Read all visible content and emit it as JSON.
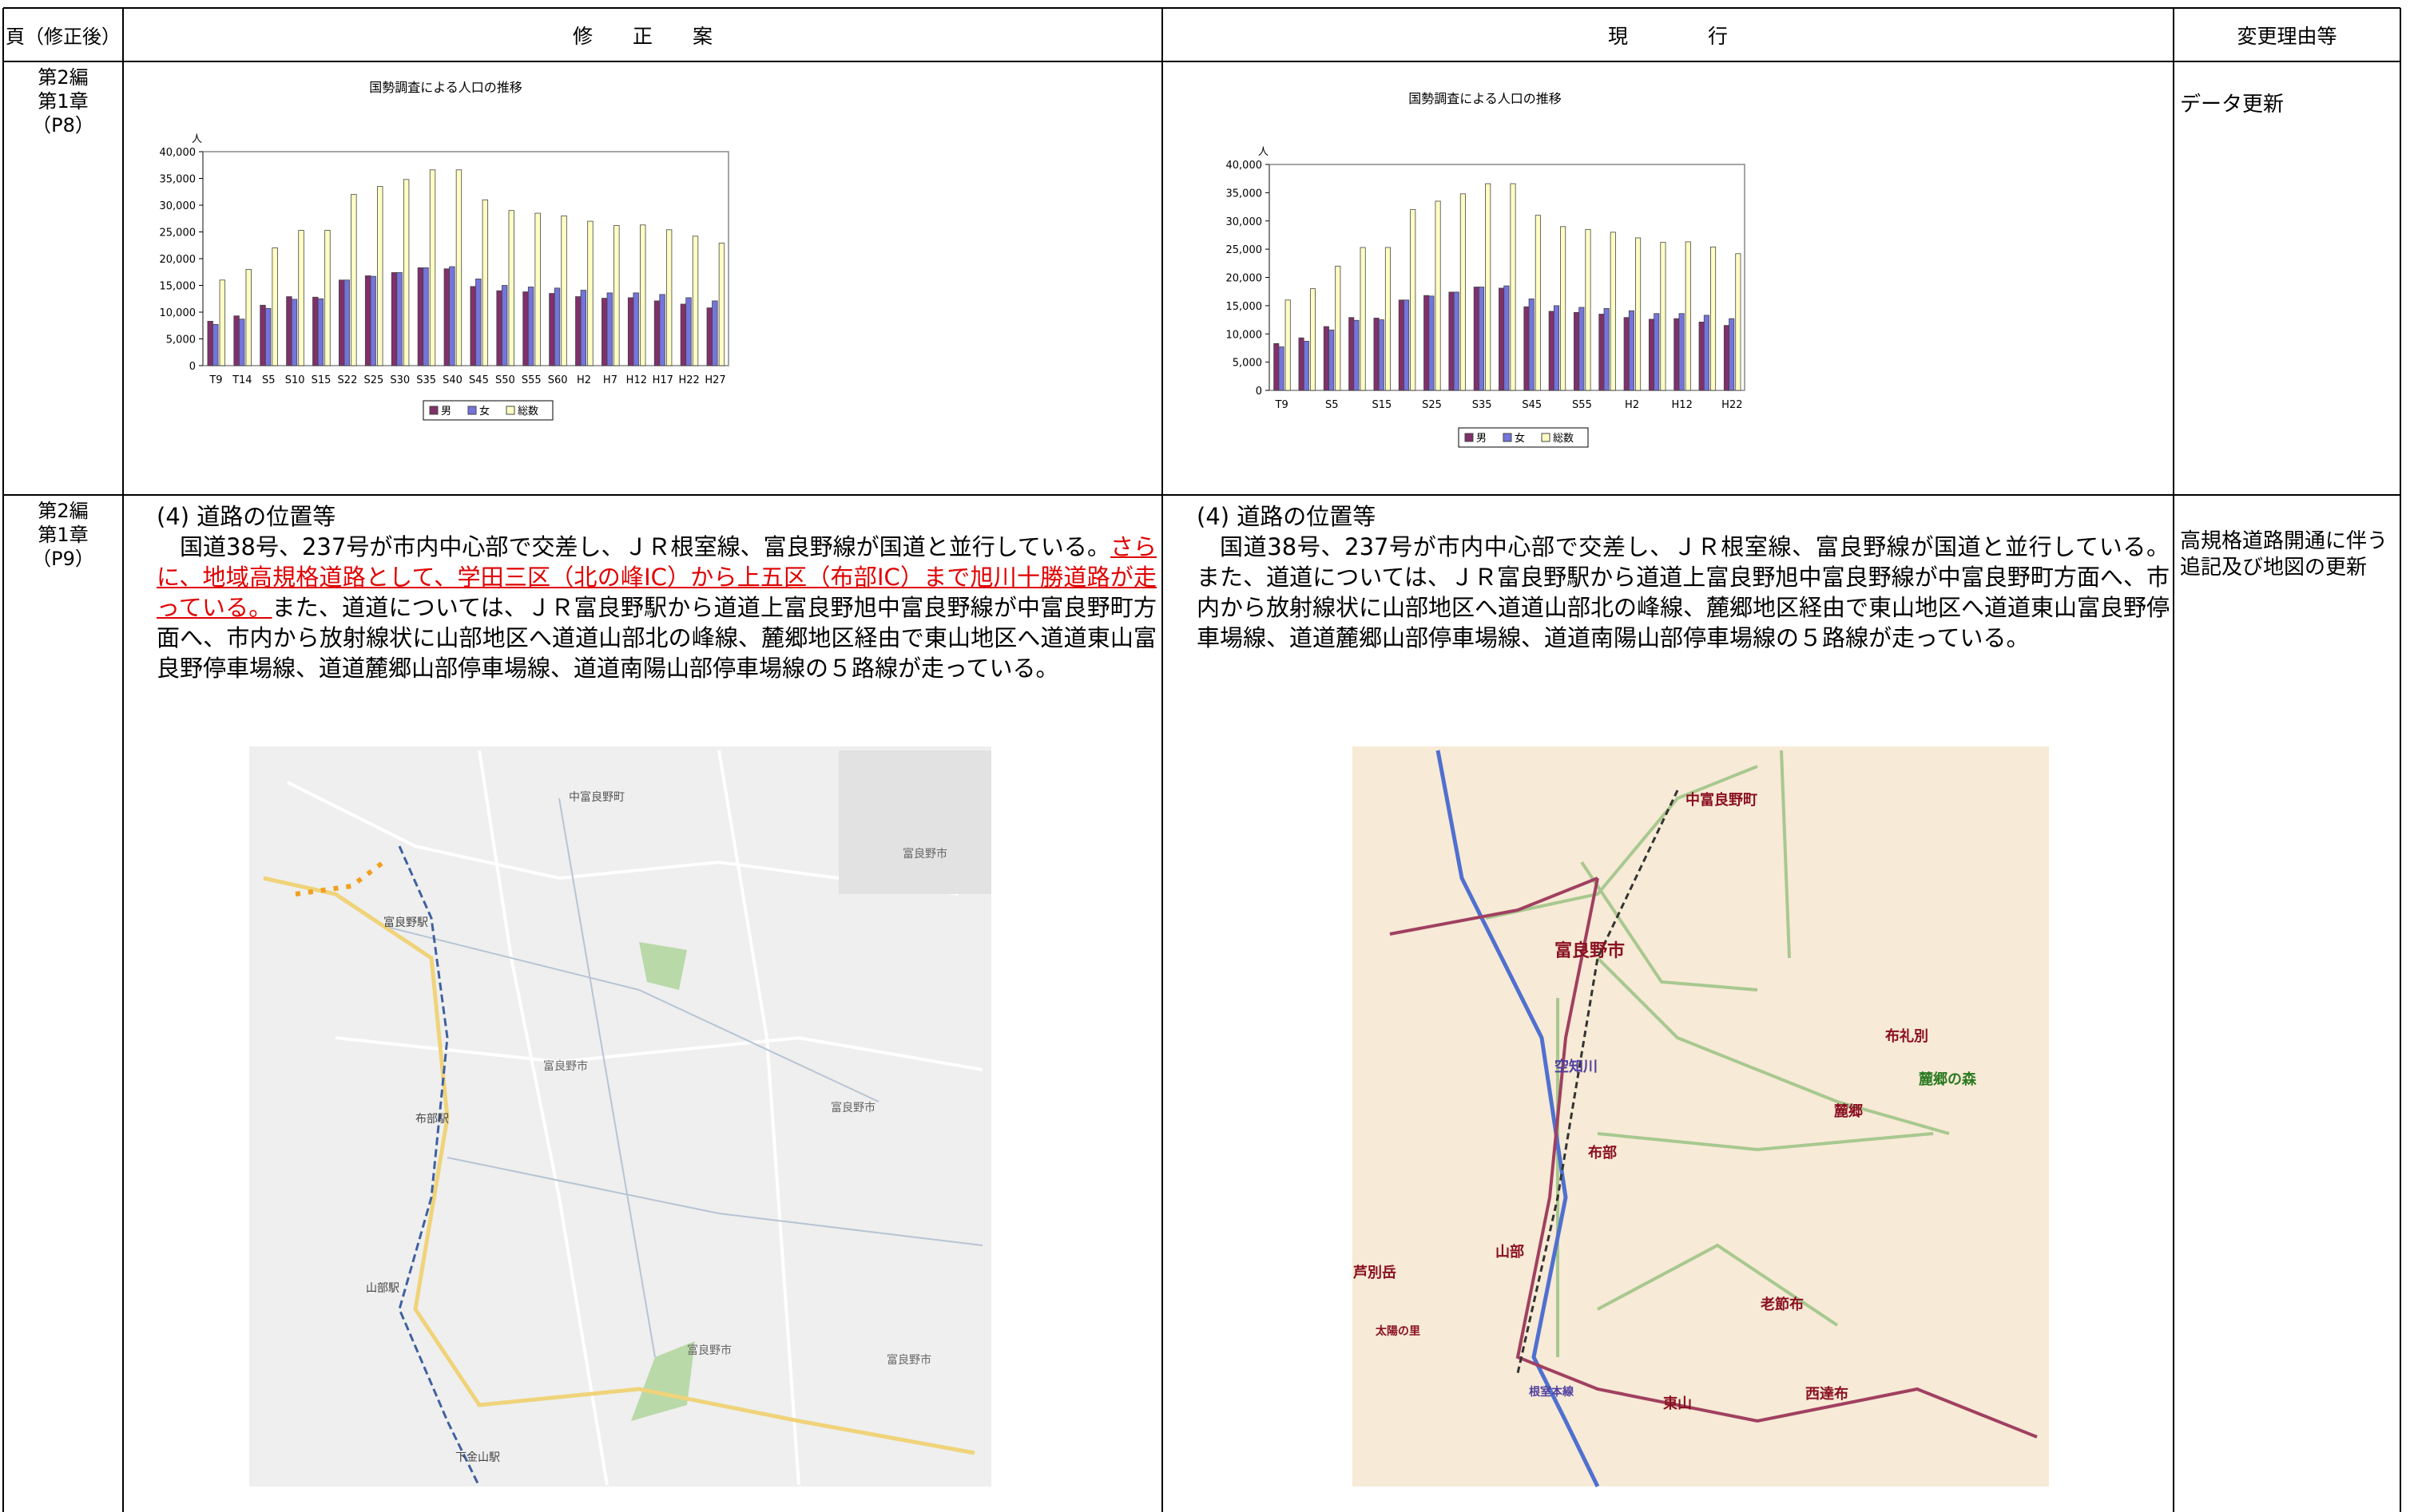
{
  "document": {
    "header": [
      "頁（修正後）",
      "修　　正　　案",
      "現　　　　行",
      "変更理由等"
    ],
    "rows": [
      {
        "page": [
          "第2編",
          "第1章",
          "（P8）"
        ],
        "reason": "データ更新"
      },
      {
        "page": [
          "第2編",
          "第1章",
          "（P9）"
        ],
        "proposed": {
          "heading": "(4) 道路の位置等",
          "text": [
            "国道38号、237号が市内中心部で交差し、ＪＲ根室線、富良野線が国道と並行している。",
            "さらに、地域高規格道路として、学田三区（北の峰IC）から上五区（布部IC）まで旭川十勝道路が走っている。",
            "また、道道については、ＪＲ富良野駅から道道上富良野旭中富良野線が中富良野町方面へ、市内から放射線状に山部地区へ道道山部北の峰線、麓郷地区経由で東山地区へ道道東山富良野停車場線、道道麓郷山部停車場線、道道南陽山部停車場線の５路線が走っている。"
          ],
          "map_labels": [
            "中富良野町",
            "富良野駅",
            "布部駅",
            "山部駅",
            "下金山駅",
            "富良野市",
            "富良野市",
            "富良野市",
            "富良野市",
            "富良野市"
          ]
        },
        "current": {
          "heading": "(4) 道路の位置等",
          "text": "国道38号、237号が市内中心部で交差し、ＪＲ根室線、富良野線が国道と並行している。また、道道については、ＪＲ富良野駅から道道上富良野旭中富良野線が中富良野町方面へ、市内から放射線状に山部地区へ道道山部北の峰線、麓郷地区経由で東山地区へ道道東山富良野停車場線、道道麓郷山部停車場線、道道南陽山部停車場線の５路線が走っている。",
          "map_labels": [
            "中富良野町",
            "富良野市",
            "布礼別",
            "麓郷",
            "麓郷の森",
            "布部",
            "空知川",
            "山部",
            "老節布",
            "東山",
            "西達布",
            "芦別岳",
            "太陽の里",
            "根室本線"
          ]
        },
        "reason": "高規格道路開通に伴う追記及び地図の更新"
      }
    ]
  },
  "chart_data": [
    {
      "type": "bar",
      "title": "国勢調査による人口の推移",
      "y_unit": "人",
      "categories": [
        "T9",
        "T14",
        "S5",
        "S10",
        "S15",
        "S22",
        "S25",
        "S30",
        "S35",
        "S40",
        "S45",
        "S50",
        "S55",
        "S60",
        "H2",
        "H7",
        "H12",
        "H17",
        "H22",
        "H27"
      ],
      "series": [
        {
          "name": "男",
          "color": "#80306a",
          "values": [
            8300,
            9300,
            11300,
            12900,
            12800,
            16000,
            16800,
            17400,
            18300,
            18100,
            14800,
            14000,
            13800,
            13500,
            12900,
            12600,
            12700,
            12100,
            11500,
            10800
          ]
        },
        {
          "name": "女",
          "color": "#7474dc",
          "values": [
            7700,
            8700,
            10700,
            12400,
            12500,
            16000,
            16700,
            17400,
            18300,
            18500,
            16200,
            15000,
            14700,
            14500,
            14100,
            13600,
            13600,
            13300,
            12700,
            12100
          ]
        },
        {
          "name": "総数",
          "color": "#ffffc4",
          "values": [
            16000,
            18000,
            22000,
            25300,
            25300,
            32000,
            33500,
            34800,
            36600,
            36600,
            31000,
            29000,
            28500,
            28000,
            27000,
            26200,
            26300,
            25400,
            24200,
            22900
          ]
        }
      ],
      "ylim": [
        0,
        40000
      ],
      "yticks": [
        0,
        {
          "value": 5000,
          "label": "5,000"
        },
        {
          "value": 10000,
          "label": "10,000"
        },
        {
          "value": 15000,
          "label": "15,000"
        },
        {
          "value": 20000,
          "label": "20,000"
        },
        {
          "value": 25000,
          "label": "25,000"
        },
        {
          "value": 30000,
          "label": "30,000"
        },
        {
          "value": 35000,
          "label": "35,000"
        },
        {
          "value": 40000,
          "label": "40,000"
        }
      ]
    },
    {
      "type": "bar",
      "title": "国勢調査による人口の推移",
      "y_unit": "人",
      "categories": [
        "T9",
        null,
        "S5",
        null,
        "S15",
        null,
        "S25",
        null,
        "S35",
        null,
        "S45",
        null,
        "S55",
        null,
        "H2",
        null,
        "H12",
        null,
        "H22"
      ],
      "series": [
        {
          "name": "男",
          "color": "#80306a",
          "values": [
            8300,
            9300,
            11300,
            12900,
            12800,
            16000,
            16800,
            17400,
            18300,
            18100,
            14800,
            14000,
            13800,
            13500,
            12900,
            12600,
            12700,
            12100,
            11500
          ]
        },
        {
          "name": "女",
          "color": "#7474dc",
          "values": [
            7700,
            8700,
            10700,
            12400,
            12500,
            16000,
            16700,
            17400,
            18300,
            18500,
            16200,
            15000,
            14700,
            14500,
            14100,
            13600,
            13600,
            13300,
            12700
          ]
        },
        {
          "name": "総数",
          "color": "#ffffc4",
          "values": [
            16000,
            18000,
            22000,
            25300,
            25300,
            32000,
            33500,
            34800,
            36600,
            36600,
            31000,
            29000,
            28500,
            28000,
            27000,
            26200,
            26300,
            25400,
            24200
          ]
        }
      ],
      "ylim": [
        0,
        40000
      ],
      "yticks": [
        0,
        {
          "value": 5000,
          "label": "5,000"
        },
        {
          "value": 10000,
          "label": "10,000"
        },
        {
          "value": 15000,
          "label": "15,000"
        },
        {
          "value": 20000,
          "label": "20,000"
        },
        {
          "value": 25000,
          "label": "25,000"
        },
        {
          "value": 30000,
          "label": "30,000"
        },
        {
          "value": 35000,
          "label": "35,000"
        },
        {
          "value": 40000,
          "label": "40,000"
        }
      ]
    }
  ]
}
